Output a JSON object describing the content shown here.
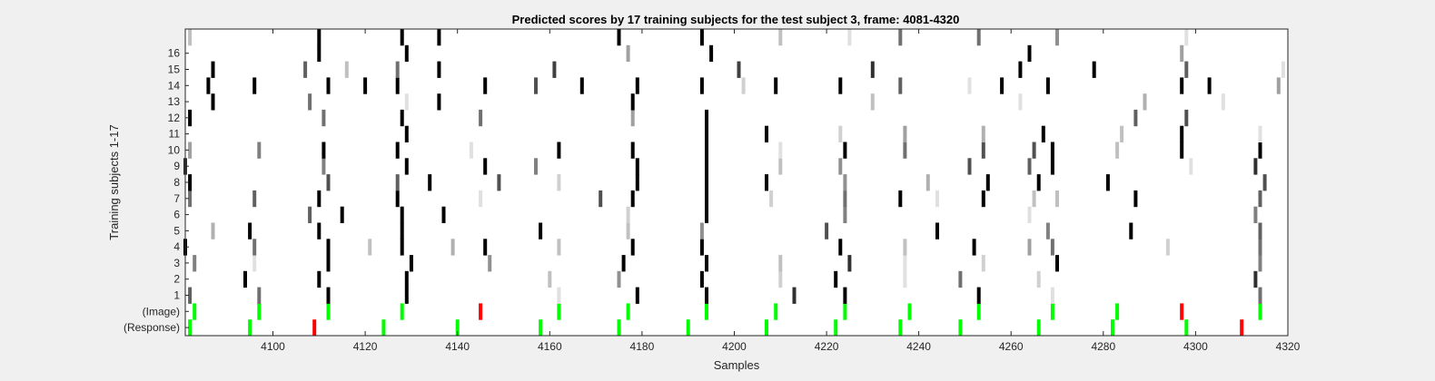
{
  "chart_data": {
    "type": "heatmap",
    "title": "Predicted scores by 17 training subjects for the test subject 3, frame: 4081-4320",
    "xlabel": "Samples",
    "ylabel": "Training subjects 1-17",
    "xlim": [
      4081,
      4320
    ],
    "x_ticks": [
      4100,
      4120,
      4140,
      4160,
      4180,
      4200,
      4220,
      4240,
      4260,
      4280,
      4300,
      4320
    ],
    "rows": [
      {
        "label": "(Response)",
        "marks": [
          [
            4082,
            "#00ff00"
          ],
          [
            4095,
            "#00ff00"
          ],
          [
            4109,
            "#ff0000"
          ],
          [
            4124,
            "#00ff00"
          ],
          [
            4140,
            "#00ff00"
          ],
          [
            4158,
            "#00ff00"
          ],
          [
            4175,
            "#00ff00"
          ],
          [
            4190,
            "#00ff00"
          ],
          [
            4207,
            "#00ff00"
          ],
          [
            4222,
            "#00ff00"
          ],
          [
            4236,
            "#00ff00"
          ],
          [
            4249,
            "#00ff00"
          ],
          [
            4266,
            "#00ff00"
          ],
          [
            4282,
            "#00ff00"
          ],
          [
            4298,
            "#00ff00"
          ],
          [
            4310,
            "#ff0000"
          ]
        ]
      },
      {
        "label": "(Image)",
        "marks": [
          [
            4083,
            "#00ff00"
          ],
          [
            4097,
            "#00ff00"
          ],
          [
            4112,
            "#00ff00"
          ],
          [
            4128,
            "#00ff00"
          ],
          [
            4145,
            "#ff0000"
          ],
          [
            4162,
            "#00ff00"
          ],
          [
            4177,
            "#00ff00"
          ],
          [
            4194,
            "#00ff00"
          ],
          [
            4209,
            "#00ff00"
          ],
          [
            4224,
            "#00ff00"
          ],
          [
            4238,
            "#00ff00"
          ],
          [
            4253,
            "#00ff00"
          ],
          [
            4269,
            "#00ff00"
          ],
          [
            4283,
            "#00ff00"
          ],
          [
            4297,
            "#ff0000"
          ],
          [
            4314,
            "#00ff00"
          ]
        ]
      },
      {
        "label": "1",
        "marks": [
          [
            4082,
            "#606060"
          ],
          [
            4097,
            "#707070"
          ],
          [
            4112,
            "#000000"
          ],
          [
            4129,
            "#000000"
          ],
          [
            4162,
            "#e0e0e0"
          ],
          [
            4179,
            "#000000"
          ],
          [
            4194,
            "#000000"
          ],
          [
            4213,
            "#303030"
          ],
          [
            4224,
            "#000000"
          ],
          [
            4253,
            "#000000"
          ],
          [
            4269,
            "#e0e0e0"
          ],
          [
            4314,
            "#707070"
          ]
        ]
      },
      {
        "label": "2",
        "marks": [
          [
            4094,
            "#000000"
          ],
          [
            4110,
            "#000000"
          ],
          [
            4129,
            "#000000"
          ],
          [
            4160,
            "#c0c0c0"
          ],
          [
            4175,
            "#909090"
          ],
          [
            4193,
            "#000000"
          ],
          [
            4210,
            "#d0d0d0"
          ],
          [
            4222,
            "#000000"
          ],
          [
            4237,
            "#e0e0e0"
          ],
          [
            4249,
            "#707070"
          ],
          [
            4266,
            "#d0d0d0"
          ],
          [
            4313,
            "#303030"
          ]
        ]
      },
      {
        "label": "3",
        "marks": [
          [
            4083,
            "#808080"
          ],
          [
            4096,
            "#e0e0e0"
          ],
          [
            4112,
            "#000000"
          ],
          [
            4130,
            "#000000"
          ],
          [
            4147,
            "#909090"
          ],
          [
            4176,
            "#000000"
          ],
          [
            4194,
            "#000000"
          ],
          [
            4210,
            "#c0c0c0"
          ],
          [
            4225,
            "#303030"
          ],
          [
            4237,
            "#e0e0e0"
          ],
          [
            4254,
            "#d0d0d0"
          ],
          [
            4270,
            "#000000"
          ],
          [
            4314,
            "#808080"
          ]
        ]
      },
      {
        "label": "4",
        "marks": [
          [
            4081,
            "#000000"
          ],
          [
            4096,
            "#707070"
          ],
          [
            4112,
            "#000000"
          ],
          [
            4121,
            "#c0c0c0"
          ],
          [
            4128,
            "#000000"
          ],
          [
            4139,
            "#b0b0b0"
          ],
          [
            4146,
            "#000000"
          ],
          [
            4162,
            "#c0c0c0"
          ],
          [
            4178,
            "#000000"
          ],
          [
            4193,
            "#000000"
          ],
          [
            4223,
            "#000000"
          ],
          [
            4237,
            "#c0c0c0"
          ],
          [
            4252,
            "#000000"
          ],
          [
            4264,
            "#a0a0a0"
          ],
          [
            4269,
            "#707070"
          ],
          [
            4294,
            "#d0d0d0"
          ],
          [
            4314,
            "#707070"
          ]
        ]
      },
      {
        "label": "5",
        "marks": [
          [
            4087,
            "#b0b0b0"
          ],
          [
            4095,
            "#000000"
          ],
          [
            4110,
            "#000000"
          ],
          [
            4128,
            "#000000"
          ],
          [
            4158,
            "#000000"
          ],
          [
            4177,
            "#c0c0c0"
          ],
          [
            4193,
            "#909090"
          ],
          [
            4220,
            "#505050"
          ],
          [
            4244,
            "#000000"
          ],
          [
            4268,
            "#808080"
          ],
          [
            4286,
            "#000000"
          ],
          [
            4314,
            "#606060"
          ]
        ]
      },
      {
        "label": "6",
        "marks": [
          [
            4108,
            "#606060"
          ],
          [
            4115,
            "#000000"
          ],
          [
            4128,
            "#000000"
          ],
          [
            4137,
            "#000000"
          ],
          [
            4177,
            "#d0d0d0"
          ],
          [
            4194,
            "#000000"
          ],
          [
            4224,
            "#808080"
          ],
          [
            4264,
            "#e0e0e0"
          ],
          [
            4313,
            "#808080"
          ]
        ]
      },
      {
        "label": "7",
        "marks": [
          [
            4082,
            "#707070"
          ],
          [
            4096,
            "#606060"
          ],
          [
            4110,
            "#000000"
          ],
          [
            4127,
            "#000000"
          ],
          [
            4145,
            "#e0e0e0"
          ],
          [
            4171,
            "#505050"
          ],
          [
            4178,
            "#000000"
          ],
          [
            4194,
            "#000000"
          ],
          [
            4208,
            "#d0d0d0"
          ],
          [
            4224,
            "#707070"
          ],
          [
            4236,
            "#000000"
          ],
          [
            4244,
            "#e0e0e0"
          ],
          [
            4254,
            "#000000"
          ],
          [
            4265,
            "#c0c0c0"
          ],
          [
            4270,
            "#c0c0c0"
          ],
          [
            4287,
            "#000000"
          ],
          [
            4314,
            "#606060"
          ]
        ]
      },
      {
        "label": "8",
        "marks": [
          [
            4082,
            "#000000"
          ],
          [
            4112,
            "#505050"
          ],
          [
            4127,
            "#606060"
          ],
          [
            4134,
            "#000000"
          ],
          [
            4149,
            "#505050"
          ],
          [
            4162,
            "#d0d0d0"
          ],
          [
            4179,
            "#000000"
          ],
          [
            4194,
            "#000000"
          ],
          [
            4207,
            "#000000"
          ],
          [
            4224,
            "#909090"
          ],
          [
            4242,
            "#b0b0b0"
          ],
          [
            4255,
            "#000000"
          ],
          [
            4266,
            "#000000"
          ],
          [
            4281,
            "#000000"
          ],
          [
            4315,
            "#505050"
          ]
        ]
      },
      {
        "label": "9",
        "marks": [
          [
            4081,
            "#303030"
          ],
          [
            4111,
            "#808080"
          ],
          [
            4129,
            "#000000"
          ],
          [
            4146,
            "#000000"
          ],
          [
            4157,
            "#808080"
          ],
          [
            4179,
            "#000000"
          ],
          [
            4194,
            "#000000"
          ],
          [
            4210,
            "#c0c0c0"
          ],
          [
            4223,
            "#909090"
          ],
          [
            4251,
            "#505050"
          ],
          [
            4264,
            "#606060"
          ],
          [
            4269,
            "#000000"
          ],
          [
            4299,
            "#e0e0e0"
          ],
          [
            4313,
            "#303030"
          ]
        ]
      },
      {
        "label": "10",
        "marks": [
          [
            4082,
            "#a0a0a0"
          ],
          [
            4097,
            "#808080"
          ],
          [
            4111,
            "#000000"
          ],
          [
            4127,
            "#000000"
          ],
          [
            4143,
            "#e0e0e0"
          ],
          [
            4162,
            "#000000"
          ],
          [
            4178,
            "#000000"
          ],
          [
            4194,
            "#000000"
          ],
          [
            4210,
            "#e0e0e0"
          ],
          [
            4224,
            "#000000"
          ],
          [
            4237,
            "#707070"
          ],
          [
            4254,
            "#505050"
          ],
          [
            4265,
            "#505050"
          ],
          [
            4269,
            "#000000"
          ],
          [
            4283,
            "#c0c0c0"
          ],
          [
            4297,
            "#000000"
          ],
          [
            4314,
            "#000000"
          ]
        ]
      },
      {
        "label": "11",
        "marks": [
          [
            4129,
            "#000000"
          ],
          [
            4194,
            "#000000"
          ],
          [
            4207,
            "#000000"
          ],
          [
            4223,
            "#d0d0d0"
          ],
          [
            4237,
            "#a0a0a0"
          ],
          [
            4254,
            "#b0b0b0"
          ],
          [
            4267,
            "#000000"
          ],
          [
            4284,
            "#c0c0c0"
          ],
          [
            4297,
            "#000000"
          ],
          [
            4314,
            "#e0e0e0"
          ]
        ]
      },
      {
        "label": "12",
        "marks": [
          [
            4082,
            "#000000"
          ],
          [
            4111,
            "#707070"
          ],
          [
            4128,
            "#000000"
          ],
          [
            4145,
            "#707070"
          ],
          [
            4178,
            "#a0a0a0"
          ],
          [
            4194,
            "#000000"
          ],
          [
            4287,
            "#606060"
          ],
          [
            4298,
            "#505050"
          ]
        ]
      },
      {
        "label": "13",
        "marks": [
          [
            4087,
            "#000000"
          ],
          [
            4108,
            "#707070"
          ],
          [
            4129,
            "#e0e0e0"
          ],
          [
            4136,
            "#000000"
          ],
          [
            4178,
            "#000000"
          ],
          [
            4230,
            "#c0c0c0"
          ],
          [
            4262,
            "#e0e0e0"
          ],
          [
            4289,
            "#b0b0b0"
          ],
          [
            4306,
            "#e0e0e0"
          ]
        ]
      },
      {
        "label": "14",
        "marks": [
          [
            4086,
            "#000000"
          ],
          [
            4096,
            "#000000"
          ],
          [
            4112,
            "#000000"
          ],
          [
            4120,
            "#000000"
          ],
          [
            4127,
            "#000000"
          ],
          [
            4146,
            "#000000"
          ],
          [
            4157,
            "#505050"
          ],
          [
            4167,
            "#000000"
          ],
          [
            4179,
            "#000000"
          ],
          [
            4193,
            "#000000"
          ],
          [
            4202,
            "#d0d0d0"
          ],
          [
            4209,
            "#000000"
          ],
          [
            4223,
            "#000000"
          ],
          [
            4236,
            "#606060"
          ],
          [
            4251,
            "#e0e0e0"
          ],
          [
            4258,
            "#000000"
          ],
          [
            4268,
            "#000000"
          ],
          [
            4297,
            "#000000"
          ],
          [
            4303,
            "#000000"
          ],
          [
            4318,
            "#a0a0a0"
          ]
        ]
      },
      {
        "label": "15",
        "marks": [
          [
            4087,
            "#000000"
          ],
          [
            4107,
            "#606060"
          ],
          [
            4116,
            "#c0c0c0"
          ],
          [
            4127,
            "#707070"
          ],
          [
            4136,
            "#000000"
          ],
          [
            4161,
            "#404040"
          ],
          [
            4201,
            "#404040"
          ],
          [
            4230,
            "#303030"
          ],
          [
            4262,
            "#000000"
          ],
          [
            4278,
            "#000000"
          ],
          [
            4298,
            "#606060"
          ],
          [
            4319,
            "#e0e0e0"
          ]
        ]
      },
      {
        "label": "16",
        "marks": [
          [
            4110,
            "#000000"
          ],
          [
            4129,
            "#000000"
          ],
          [
            4177,
            "#a0a0a0"
          ],
          [
            4195,
            "#000000"
          ],
          [
            4264,
            "#000000"
          ],
          [
            4297,
            "#a0a0a0"
          ]
        ]
      },
      {
        "label": "",
        "marks": [
          [
            4082,
            "#c0c0c0"
          ],
          [
            4110,
            "#000000"
          ],
          [
            4128,
            "#000000"
          ],
          [
            4136,
            "#000000"
          ],
          [
            4175,
            "#000000"
          ],
          [
            4193,
            "#000000"
          ],
          [
            4210,
            "#c0c0c0"
          ],
          [
            4225,
            "#e0e0e0"
          ],
          [
            4236,
            "#707070"
          ],
          [
            4253,
            "#707070"
          ],
          [
            4270,
            "#909090"
          ],
          [
            4298,
            "#e0e0e0"
          ]
        ]
      }
    ]
  }
}
